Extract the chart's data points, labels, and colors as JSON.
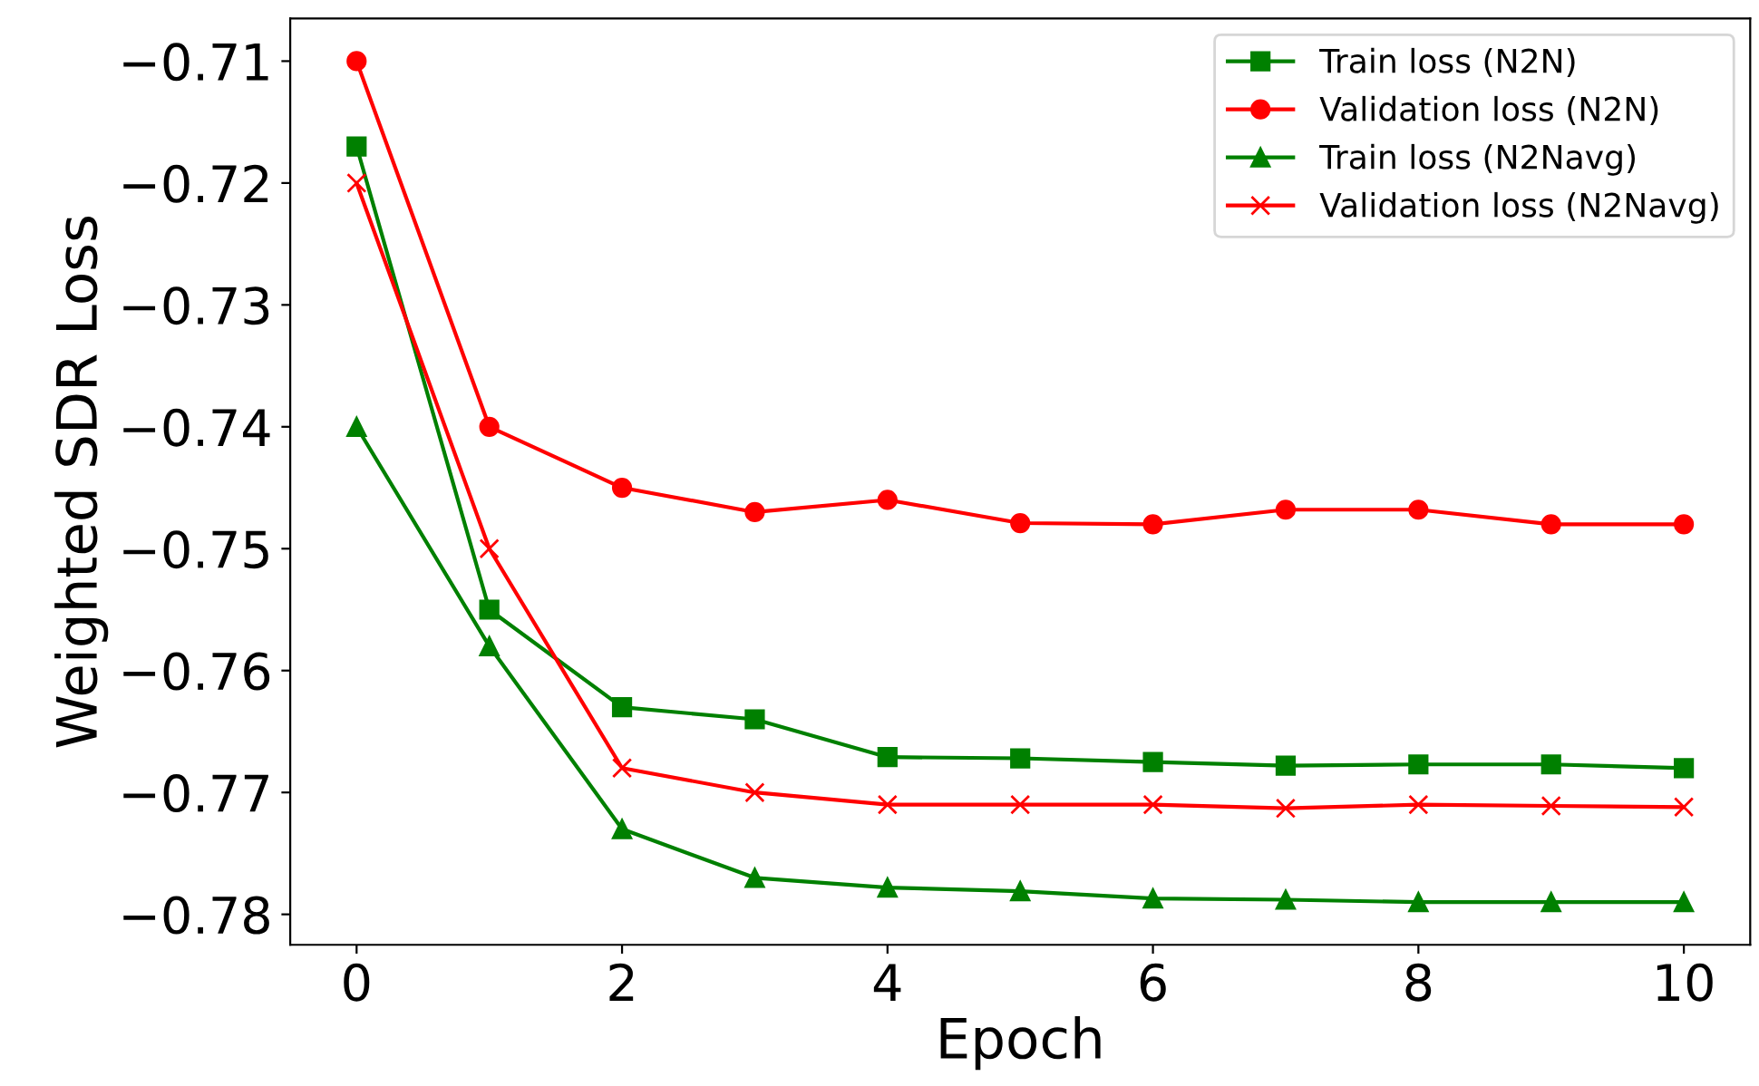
{
  "chart_data": {
    "type": "line",
    "xlabel": "Epoch",
    "ylabel": "Weighted SDR Loss",
    "x": [
      0,
      1,
      2,
      3,
      4,
      5,
      6,
      7,
      8,
      9,
      10
    ],
    "series": [
      {
        "name": "Train loss (N2N)",
        "color": "#008000",
        "marker": "square",
        "values": [
          -0.717,
          -0.755,
          -0.763,
          -0.764,
          -0.7671,
          -0.7672,
          -0.7675,
          -0.7678,
          -0.7677,
          -0.7677,
          -0.768
        ]
      },
      {
        "name": "Validation loss (N2N)",
        "color": "#ff0000",
        "marker": "circle",
        "values": [
          -0.71,
          -0.74,
          -0.745,
          -0.747,
          -0.746,
          -0.7479,
          -0.748,
          -0.7468,
          -0.7468,
          -0.748,
          -0.748
        ]
      },
      {
        "name": "Train loss (N2Navg)",
        "color": "#008000",
        "marker": "triangle",
        "values": [
          -0.74,
          -0.758,
          -0.773,
          -0.777,
          -0.7778,
          -0.7781,
          -0.7787,
          -0.7788,
          -0.779,
          -0.779,
          -0.779
        ]
      },
      {
        "name": "Validation loss (N2Navg)",
        "color": "#ff0000",
        "marker": "cross",
        "values": [
          -0.72,
          -0.75,
          -0.768,
          -0.77,
          -0.771,
          -0.771,
          -0.771,
          -0.7713,
          -0.771,
          -0.7711,
          -0.7712
        ]
      }
    ],
    "xlim": [
      -0.5,
      10.5
    ],
    "xticks": [
      0,
      2,
      4,
      6,
      8,
      10
    ],
    "ylim": [
      -0.7825,
      -0.7065
    ],
    "yticks": [
      {
        "value": -0.71,
        "label": "−0.71"
      },
      {
        "value": -0.72,
        "label": "−0.72"
      },
      {
        "value": -0.73,
        "label": "−0.73"
      },
      {
        "value": -0.74,
        "label": "−0.74"
      },
      {
        "value": -0.75,
        "label": "−0.75"
      },
      {
        "value": -0.76,
        "label": "−0.76"
      },
      {
        "value": -0.77,
        "label": "−0.77"
      },
      {
        "value": -0.78,
        "label": "−0.78"
      }
    ],
    "grid": false,
    "legend": "top right",
    "line_style": "solid"
  }
}
